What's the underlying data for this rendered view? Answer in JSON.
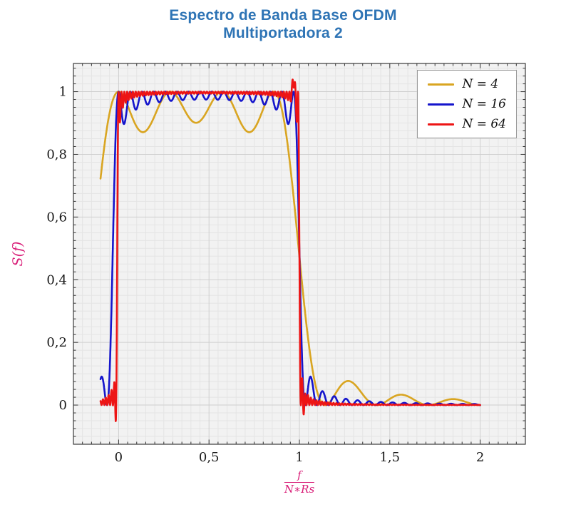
{
  "chart_data": {
    "type": "line",
    "title": "Espectro de Banda Base OFDM — Multiportadora 2",
    "title_lines": [
      "Espectro de Banda Base OFDM",
      "Multiportadora 2"
    ],
    "ylabel": "S(f)",
    "xlabel": "f / (N∗Rs)",
    "xlabel_parts": {
      "numerator": "f",
      "denominator": "N∗Rs"
    },
    "xlim": [
      -0.25,
      2.25
    ],
    "ylim": [
      -0.125,
      1.09
    ],
    "x_ticks": [
      0,
      0.5,
      1,
      1.5,
      2
    ],
    "x_tick_labels": [
      "0",
      "0,5",
      "1",
      "1,5",
      "2"
    ],
    "y_ticks": [
      0,
      0.2,
      0.4,
      0.6,
      0.8,
      1
    ],
    "y_tick_labels": [
      "0",
      "0,2",
      "0,4",
      "0,6",
      "0,8",
      "1"
    ],
    "x_minor_step": 0.05,
    "y_minor_step": 0.025,
    "x_range_data": [
      -0.1,
      2.0
    ],
    "sample_step": 0.001,
    "grid": true,
    "legend_position": "top-right",
    "model": "S_N(x) = sum_{k=0..N-1} sinc^2((N-0.5)*x - k), with x = f/(N*Rs); red curve adds small Gibbs-like edge spikes",
    "series": [
      {
        "name": "N4",
        "label": "N = 4",
        "N": 4,
        "color": "#D9A521",
        "approx_keypoints": [
          [
            -0.1,
            0.64
          ],
          [
            0,
            1.0
          ],
          [
            0.14,
            0.87
          ],
          [
            0.29,
            1.0
          ],
          [
            0.43,
            0.87
          ],
          [
            0.57,
            1.0
          ],
          [
            0.71,
            0.87
          ],
          [
            0.86,
            1.0
          ],
          [
            0.99,
            0.5
          ],
          [
            1.1,
            0.02
          ],
          [
            1.29,
            0.075
          ],
          [
            1.57,
            0.033
          ],
          [
            1.86,
            0.019
          ],
          [
            2.0,
            0.0
          ]
        ]
      },
      {
        "name": "N16",
        "label": "N = 16",
        "N": 16,
        "color": "#1515CC",
        "approx_keypoints": [
          [
            -0.1,
            0.07
          ],
          [
            -0.095,
            0.08
          ],
          [
            -0.063,
            0.0
          ],
          [
            -0.031,
            0.5
          ],
          [
            0,
            1.0
          ],
          [
            0.5,
            0.95
          ],
          [
            0.97,
            1.0
          ],
          [
            0.998,
            0.5
          ],
          [
            1.03,
            0.08
          ],
          [
            1.097,
            0.037
          ],
          [
            1.16,
            0.022
          ],
          [
            1.5,
            0.005
          ],
          [
            2.0,
            0.001
          ]
        ]
      },
      {
        "name": "N64",
        "label": "N = 64",
        "N": 64,
        "color": "#ED1515",
        "edge_effects": [
          {
            "x": -0.0157,
            "amp": -0.052,
            "sigma": 0.008
          },
          {
            "x": 0.968,
            "amp": 0.065,
            "sigma": 0.009
          },
          {
            "x": 1.0236,
            "amp": -0.03,
            "sigma": 0.008
          }
        ],
        "approx_keypoints": [
          [
            -0.1,
            0.005
          ],
          [
            -0.05,
            0.02
          ],
          [
            -0.016,
            -0.05
          ],
          [
            0.0,
            0.9
          ],
          [
            0.008,
            1.0
          ],
          [
            0.5,
            0.99
          ],
          [
            0.968,
            1.02
          ],
          [
            0.992,
            0.5
          ],
          [
            1.008,
            0.0
          ],
          [
            1.016,
            0.07
          ],
          [
            1.05,
            0.02
          ],
          [
            1.5,
            0.002
          ],
          [
            2.0,
            0.0
          ]
        ]
      }
    ],
    "colors": {
      "title": "#2E74B5",
      "axis_label": "#D91E78",
      "plot_bg": "#F2F2F2",
      "grid_minor": "#E4E4E4",
      "grid_major": "#CFCFCF",
      "axis_border": "#3A3A3A",
      "tick": "#333333",
      "tick_label": "#1A1A1A",
      "legend_border": "#999999",
      "legend_bg": "#FFFFFF"
    }
  }
}
